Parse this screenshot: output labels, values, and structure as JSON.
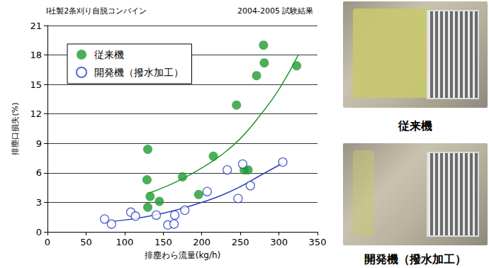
{
  "chart_data": {
    "type": "scatter",
    "title": "I社製2条刈り自脱コンバイン",
    "subtitle": "2004-2005 試験結果",
    "x_label": "排塵わら流量(kg/h)",
    "y_label": "排塵口損失(%)",
    "xlim": [
      0,
      350
    ],
    "xticks": [
      0,
      50,
      100,
      150,
      200,
      250,
      300,
      350
    ],
    "ylim": [
      0,
      21
    ],
    "yticks": [
      0,
      3,
      6,
      9,
      12,
      15,
      18,
      21
    ],
    "grid": true,
    "legend": "upper left",
    "series": [
      {
        "name": "従来機",
        "color": "#1f9a2f",
        "marker": "circle",
        "line_style": "solid",
        "values": [
          [
            130,
            8.4
          ],
          [
            129,
            5.3
          ],
          [
            133,
            3.6
          ],
          [
            145,
            3.1
          ],
          [
            130,
            2.5
          ],
          [
            175,
            5.6
          ],
          [
            196,
            3.8
          ],
          [
            215,
            7.7
          ],
          [
            245,
            12.9
          ],
          [
            255,
            6.3
          ],
          [
            260,
            6.3
          ],
          [
            271,
            15.9
          ],
          [
            280,
            19.0
          ],
          [
            281,
            17.2
          ],
          [
            323,
            16.9
          ]
        ],
        "trend": [
          [
            130,
            3.9
          ],
          [
            150,
            4.5
          ],
          [
            175,
            5.4
          ],
          [
            200,
            6.5
          ],
          [
            225,
            7.8
          ],
          [
            250,
            9.5
          ],
          [
            275,
            11.8
          ],
          [
            300,
            14.5
          ],
          [
            325,
            18.0
          ]
        ]
      },
      {
        "name": "開発機（撥水加工）",
        "color": "#2a3fc0",
        "marker": "open_circle",
        "line_style": "solid",
        "values": [
          [
            74,
            1.3
          ],
          [
            83,
            0.8
          ],
          [
            108,
            2.0
          ],
          [
            114,
            1.6
          ],
          [
            141,
            1.7
          ],
          [
            156,
            0.7
          ],
          [
            164,
            0.8
          ],
          [
            165,
            1.7
          ],
          [
            178,
            2.2
          ],
          [
            207,
            4.1
          ],
          [
            233,
            6.3
          ],
          [
            247,
            3.4
          ],
          [
            253,
            6.9
          ],
          [
            263,
            4.7
          ],
          [
            305,
            7.1
          ]
        ],
        "trend": [
          [
            75,
            1.0
          ],
          [
            100,
            1.2
          ],
          [
            125,
            1.5
          ],
          [
            150,
            1.9
          ],
          [
            175,
            2.4
          ],
          [
            200,
            3.0
          ],
          [
            225,
            3.7
          ],
          [
            250,
            4.6
          ],
          [
            275,
            5.7
          ],
          [
            305,
            7.0
          ]
        ]
      }
    ]
  },
  "photos": [
    {
      "caption": "従来機"
    },
    {
      "caption": "開発機（撥水加工）"
    }
  ]
}
